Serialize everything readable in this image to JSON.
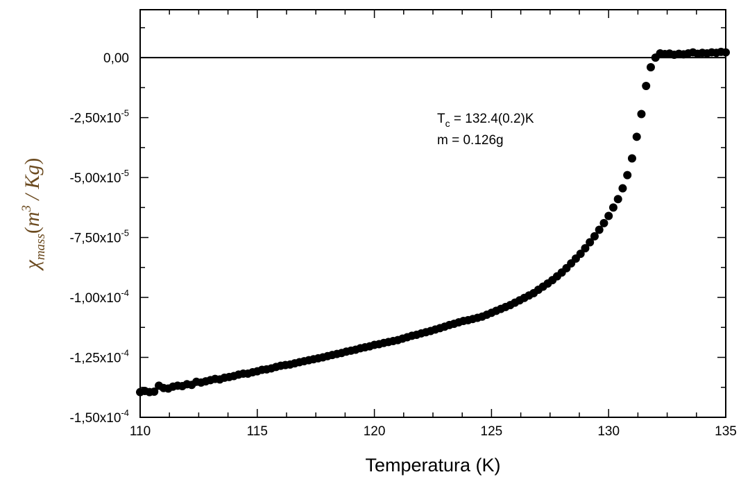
{
  "chart_data": {
    "type": "scatter",
    "xlabel": "Temperatura (K)",
    "ylabel": {
      "symbol": "χ",
      "subscript": "mass",
      "open": "(",
      "unit_base": "m",
      "unit_exp": "3",
      "unit_rest": " / Kg",
      "close": ")"
    },
    "xlim": [
      110,
      135
    ],
    "ylim": [
      -0.00015,
      2e-05
    ],
    "x_ticks": [
      {
        "value": 110,
        "label": "110"
      },
      {
        "value": 115,
        "label": "115"
      },
      {
        "value": 120,
        "label": "120"
      },
      {
        "value": 125,
        "label": "125"
      },
      {
        "value": 130,
        "label": "130"
      },
      {
        "value": 135,
        "label": "135"
      }
    ],
    "y_ticks": [
      {
        "value": 0,
        "mantissa": "0,00",
        "exp": ""
      },
      {
        "value": -2.5e-05,
        "mantissa": "-2,50x10",
        "exp": "-5"
      },
      {
        "value": -5e-05,
        "mantissa": "-5,00x10",
        "exp": "-5"
      },
      {
        "value": -7.5e-05,
        "mantissa": "-7,50x10",
        "exp": "-5"
      },
      {
        "value": -0.0001,
        "mantissa": "-1,00x10",
        "exp": "-4"
      },
      {
        "value": -0.000125,
        "mantissa": "-1,25x10",
        "exp": "-4"
      },
      {
        "value": -0.00015,
        "mantissa": "-1,50x10",
        "exp": "-4"
      }
    ],
    "reference_line_y": 0,
    "annotation": {
      "line1_prefix": "T",
      "line1_sub": "c",
      "line1_rest": " = 132.4(0.2)K",
      "line2": "m = 0.126g"
    },
    "grid": false,
    "marker_color": "#000000",
    "series": [
      {
        "x": [
          110.0,
          110.2,
          110.4,
          110.6,
          110.8,
          111.0,
          111.2,
          111.4,
          111.6,
          111.8,
          112.0,
          112.2,
          112.4,
          112.6,
          112.8,
          113.0,
          113.2,
          113.4,
          113.6,
          113.8,
          114.0,
          114.2,
          114.4,
          114.6,
          114.8,
          115.0,
          115.2,
          115.4,
          115.6,
          115.8,
          116.0,
          116.2,
          116.4,
          116.6,
          116.8,
          117.0,
          117.2,
          117.4,
          117.6,
          117.8,
          118.0,
          118.2,
          118.4,
          118.6,
          118.8,
          119.0,
          119.2,
          119.4,
          119.6,
          119.8,
          120.0,
          120.2,
          120.4,
          120.6,
          120.8,
          121.0,
          121.2,
          121.4,
          121.6,
          121.8,
          122.0,
          122.2,
          122.4,
          122.6,
          122.8,
          123.0,
          123.2,
          123.4,
          123.6,
          123.8,
          124.0,
          124.2,
          124.4,
          124.6,
          124.8,
          125.0,
          125.2,
          125.4,
          125.6,
          125.8,
          126.0,
          126.2,
          126.4,
          126.6,
          126.8,
          127.0,
          127.2,
          127.4,
          127.6,
          127.8,
          128.0,
          128.2,
          128.4,
          128.6,
          128.8,
          129.0,
          129.2,
          129.4,
          129.6,
          129.8,
          130.0,
          130.2,
          130.4,
          130.6,
          130.8,
          131.0,
          131.2,
          131.4,
          131.6,
          131.8,
          132.0,
          132.2,
          132.4,
          132.6,
          132.8,
          133.0,
          133.2,
          133.4,
          133.6,
          133.8,
          134.0,
          134.2,
          134.4,
          134.6,
          134.8,
          135.0
        ],
        "y": [
          -0.0001395,
          -0.000139,
          -0.0001395,
          -0.0001393,
          -0.0001368,
          -0.0001378,
          -0.000138,
          -0.0001372,
          -0.0001368,
          -0.000137,
          -0.0001362,
          -0.0001365,
          -0.0001352,
          -0.0001355,
          -0.000135,
          -0.0001345,
          -0.000134,
          -0.0001342,
          -0.0001335,
          -0.0001332,
          -0.0001328,
          -0.0001322,
          -0.0001318,
          -0.0001318,
          -0.0001312,
          -0.0001308,
          -0.0001302,
          -0.00013,
          -0.0001296,
          -0.000129,
          -0.0001285,
          -0.0001282,
          -0.000128,
          -0.0001275,
          -0.000127,
          -0.0001266,
          -0.0001262,
          -0.0001258,
          -0.0001254,
          -0.000125,
          -0.0001245,
          -0.000124,
          -0.0001236,
          -0.0001232,
          -0.0001226,
          -0.0001222,
          -0.0001218,
          -0.0001212,
          -0.0001208,
          -0.0001204,
          -0.0001198,
          -0.0001195,
          -0.000119,
          -0.0001186,
          -0.0001182,
          -0.0001178,
          -0.0001172,
          -0.0001166,
          -0.000116,
          -0.0001156,
          -0.000115,
          -0.0001145,
          -0.000114,
          -0.0001134,
          -0.0001128,
          -0.0001122,
          -0.0001115,
          -0.000111,
          -0.0001104,
          -0.0001098,
          -0.0001095,
          -0.000109,
          -0.0001085,
          -0.000108,
          -0.0001072,
          -0.0001064,
          -0.0001056,
          -0.0001048,
          -0.000104,
          -0.0001032,
          -0.0001022,
          -0.0001012,
          -0.0001002,
          -9.92e-05,
          -9.82e-05,
          -9.68e-05,
          -9.55e-05,
          -9.42e-05,
          -9.28e-05,
          -9.12e-05,
          -8.96e-05,
          -8.78e-05,
          -8.58e-05,
          -8.38e-05,
          -8.18e-05,
          -7.95e-05,
          -7.7e-05,
          -7.45e-05,
          -7.18e-05,
          -6.9e-05,
          -6.6e-05,
          -6.25e-05,
          -5.9e-05,
          -5.45e-05,
          -4.9e-05,
          -4.2e-05,
          -3.3e-05,
          -2.35e-05,
          -1.18e-05,
          -4e-06,
          0.0,
          1.8e-06,
          1.5e-06,
          1.7e-06,
          1.2e-06,
          1.6e-06,
          1.4e-06,
          1.8e-06,
          2.2e-06,
          1.6e-06,
          2e-06,
          1.8e-06,
          2.2e-06,
          2e-06,
          2.4e-06,
          2.2e-06
        ]
      }
    ]
  }
}
